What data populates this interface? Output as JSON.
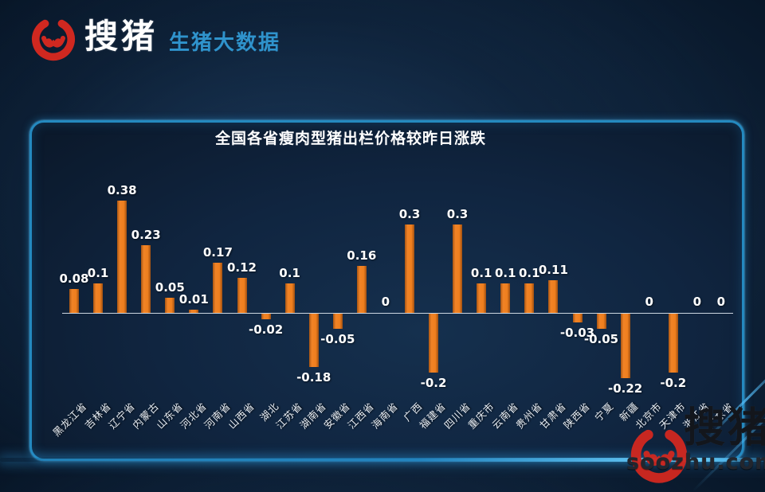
{
  "header": {
    "brand": "搜猪",
    "tagline": "生猪大数据"
  },
  "chart_data": {
    "type": "bar",
    "title": "全国各省瘦肉型猪出栏价格较昨日涨跌",
    "categories": [
      "黑龙江省",
      "吉林省",
      "辽宁省",
      "内蒙古",
      "山东省",
      "河北省",
      "河南省",
      "山西省",
      "湖北",
      "江苏省",
      "湖南省",
      "安徽省",
      "江西省",
      "海南省",
      "广西",
      "福建省",
      "四川省",
      "重庆市",
      "云南省",
      "贵州省",
      "甘肃省",
      "陕西省",
      "宁夏",
      "新疆",
      "北京市",
      "天津市",
      "浙江省",
      "广东省"
    ],
    "values": [
      0.08,
      0.1,
      0.38,
      0.23,
      0.05,
      0.01,
      0.17,
      0.12,
      -0.02,
      0.1,
      -0.18,
      -0.05,
      0.16,
      0,
      0.3,
      -0.2,
      0.3,
      0.1,
      0.1,
      0.1,
      0.11,
      -0.03,
      -0.05,
      -0.22,
      0,
      -0.2,
      0,
      0
    ],
    "value_labels": [
      "0.08",
      "0.1",
      "0.38",
      "0.23",
      "0.05",
      "0.01",
      "0.17",
      "0.12",
      "-0.02",
      "0.1",
      "-0.18",
      "-0.05",
      "0.16",
      "0",
      "0.3",
      "-0.2",
      "0.3",
      "0.1",
      "0.1",
      "0.1",
      "0.11",
      "-0.03",
      "-0.05",
      "-0.22",
      "0",
      "-0.2",
      "0",
      "0"
    ],
    "xlabel": "",
    "ylabel": "",
    "ylim": [
      -0.3,
      0.45
    ],
    "grid": false,
    "legend": "none",
    "zero_line": true,
    "bar_color": "#ef7f1e"
  },
  "watermark": {
    "brand": "搜猪",
    "site": "soozhu.com"
  },
  "colors": {
    "accent_blue": "#2f93cc",
    "panel_border": "#2489bf",
    "brand_red": "#cf2820",
    "bar_orange": "#ef7f1e"
  }
}
